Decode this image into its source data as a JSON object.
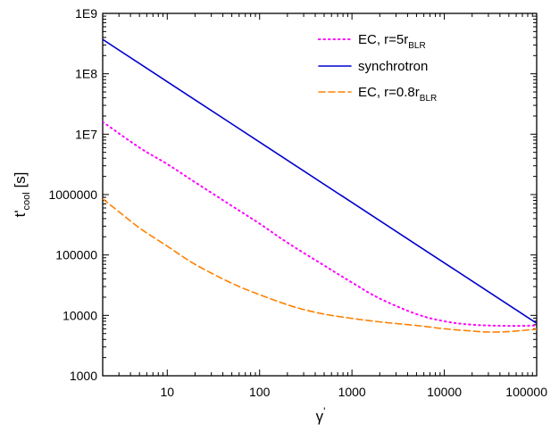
{
  "chart_data": {
    "type": "line",
    "xscale": "log",
    "yscale": "log",
    "xlim": [
      2,
      100000
    ],
    "ylim": [
      1000,
      1000000000
    ],
    "xticks": [
      {
        "value": 10,
        "label": "10"
      },
      {
        "value": 100,
        "label": "100"
      },
      {
        "value": 1000,
        "label": "1000"
      },
      {
        "value": 10000,
        "label": "10000"
      },
      {
        "value": 100000,
        "label": "100000"
      }
    ],
    "yticks": [
      {
        "value": 1000,
        "label": "1000"
      },
      {
        "value": 10000,
        "label": "10000"
      },
      {
        "value": 100000,
        "label": "100000"
      },
      {
        "value": 1000000,
        "label": "1000000"
      },
      {
        "value": 10000000,
        "label": "1E7"
      },
      {
        "value": 100000000,
        "label": "1E8"
      },
      {
        "value": 1000000000,
        "label": "1E9"
      }
    ],
    "xlabel": {
      "main": "γ",
      "sup": "'"
    },
    "ylabel": {
      "main": "t'",
      "sub": "cool",
      "unit": " [s]"
    },
    "legend_position": "top-right",
    "grid": false,
    "series": [
      {
        "name": {
          "main": "EC, r=5r",
          "sub": "BLR"
        },
        "color": "#ff00ff",
        "style": "dotted",
        "x": [
          2,
          5,
          10,
          20,
          50,
          100,
          200,
          500,
          1000,
          2000,
          5000,
          10000,
          20000,
          50000,
          100000
        ],
        "y": [
          16000000,
          6000000,
          3200000,
          1600000,
          650000,
          330000,
          160000,
          67000,
          35000,
          19000,
          10500,
          8000,
          7000,
          6700,
          6800
        ]
      },
      {
        "name": {
          "main": "synchrotron",
          "sub": ""
        },
        "color": "#0000cd",
        "style": "solid",
        "x": [
          2,
          10,
          100,
          1000,
          10000,
          100000
        ],
        "y": [
          370000000,
          74000000,
          7400000,
          740000,
          74000,
          7400
        ]
      },
      {
        "name": {
          "main": "EC, r=0.8r",
          "sub": "BLR"
        },
        "color": "#ff8000",
        "style": "dashed",
        "x": [
          2,
          3,
          5,
          10,
          20,
          50,
          100,
          200,
          300,
          500,
          1000,
          2000,
          5000,
          10000,
          20000,
          30000,
          50000,
          100000
        ],
        "y": [
          850000,
          520000,
          280000,
          140000,
          70000,
          34000,
          22000,
          15000,
          12500,
          10500,
          8900,
          7800,
          6800,
          6000,
          5500,
          5300,
          5400,
          5900
        ]
      }
    ]
  }
}
